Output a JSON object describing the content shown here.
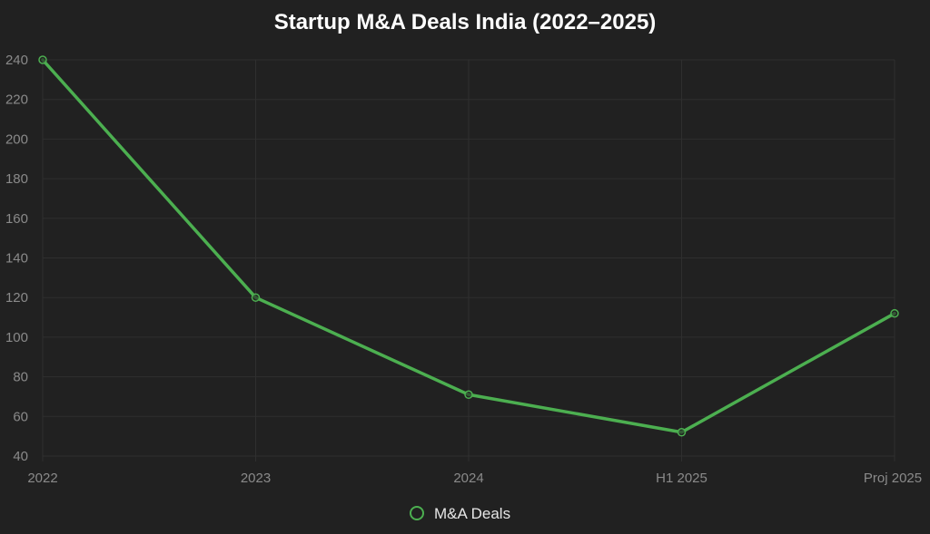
{
  "chart_data": {
    "type": "line",
    "title": "Startup M&A Deals India (2022–2025)",
    "xlabel": "",
    "ylabel": "",
    "categories": [
      "2022",
      "2023",
      "2024",
      "H1 2025",
      "Proj 2025"
    ],
    "series": [
      {
        "name": "M&A Deals",
        "values": [
          240,
          120,
          71,
          52,
          112
        ],
        "color": "#4caf50"
      }
    ],
    "ylim": [
      40,
      240
    ],
    "yticks": [
      40,
      60,
      80,
      100,
      120,
      140,
      160,
      180,
      200,
      220,
      240
    ],
    "grid": true,
    "legend": {
      "position": "bottom-center",
      "entries": [
        "M&A Deals"
      ]
    }
  },
  "colors": {
    "background": "#212121",
    "grid": "#2f2f2f",
    "tick_text": "#8a8a8a",
    "title_text": "#ffffff",
    "legend_text": "#e6e6e6"
  }
}
